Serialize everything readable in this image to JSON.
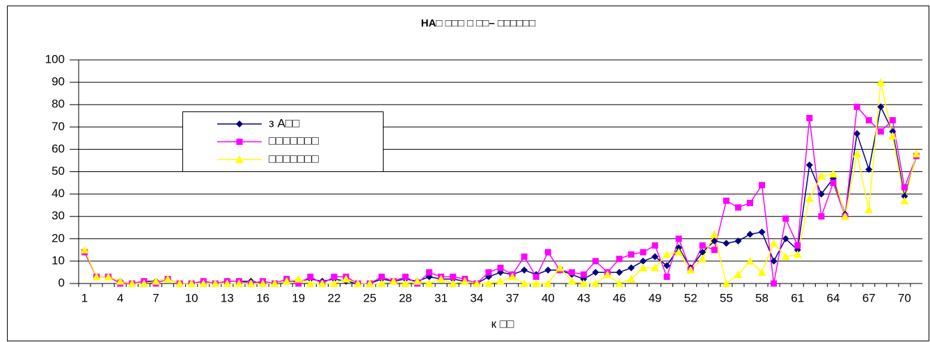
{
  "chart_data": {
    "type": "line",
    "title": "НА□ □□□ □ □□– □□□□□□",
    "x_label": "к □□",
    "categories": [
      1,
      null,
      null,
      4,
      null,
      null,
      7,
      null,
      null,
      10,
      null,
      null,
      13,
      null,
      null,
      16,
      null,
      null,
      19,
      null,
      null,
      22,
      null,
      null,
      25,
      null,
      null,
      28,
      null,
      null,
      31,
      null,
      null,
      34,
      null,
      null,
      37,
      null,
      null,
      40,
      null,
      null,
      43,
      null,
      null,
      46,
      null,
      null,
      49,
      null,
      null,
      52,
      null,
      null,
      55,
      null,
      null,
      58,
      null,
      null,
      61,
      null,
      null,
      64,
      null,
      null,
      67,
      null,
      null,
      70,
      null
    ],
    "series": [
      {
        "name": "з А□□",
        "color": "#000080",
        "marker": "diamond",
        "values": [
          14,
          3,
          3,
          1,
          0,
          1,
          1,
          2,
          0,
          0,
          1,
          0,
          1,
          1,
          1,
          0,
          0,
          1,
          1,
          2,
          1,
          2,
          1,
          0,
          0,
          2,
          1,
          2,
          1,
          3,
          2,
          2,
          1,
          0,
          3,
          5,
          4,
          6,
          4,
          6,
          6,
          4,
          2,
          5,
          5,
          5,
          7,
          10,
          12,
          8,
          16,
          7,
          14,
          19,
          18,
          19,
          22,
          23,
          10,
          20,
          15,
          53,
          40,
          47,
          31,
          67,
          51,
          79,
          68,
          39,
          57
        ]
      },
      {
        "name": "□□□□□□□",
        "color": "#ff00ff",
        "marker": "square",
        "values": [
          14,
          3,
          3,
          0,
          0,
          1,
          0,
          2,
          0,
          0,
          1,
          0,
          1,
          1,
          0,
          1,
          0,
          2,
          0,
          3,
          0,
          3,
          3,
          0,
          0,
          3,
          1,
          3,
          0,
          5,
          3,
          3,
          2,
          0,
          5,
          7,
          4,
          12,
          3,
          14,
          6,
          5,
          4,
          10,
          5,
          11,
          13,
          14,
          17,
          3,
          20,
          6,
          17,
          15,
          37,
          34,
          36,
          44,
          0,
          29,
          17,
          74,
          30,
          45,
          30,
          79,
          73,
          68,
          73,
          43,
          57
        ]
      },
      {
        "name": "□□□□□□□",
        "color": "#ffff00",
        "marker": "triangle",
        "values": [
          15,
          3,
          3,
          1,
          0,
          0,
          1,
          2,
          0,
          0,
          0,
          0,
          0,
          0,
          0,
          0,
          0,
          1,
          2,
          0,
          0,
          0,
          2,
          0,
          0,
          0,
          1,
          0,
          1,
          0,
          2,
          0,
          1,
          0,
          0,
          1,
          3,
          0,
          0,
          0,
          7,
          1,
          0,
          0,
          4,
          0,
          2,
          7,
          7,
          13,
          14,
          6,
          11,
          22,
          0,
          4,
          10,
          5,
          18,
          12,
          13,
          38,
          48,
          49,
          30,
          58,
          33,
          90,
          66,
          37,
          58
        ]
      }
    ],
    "ylim": [
      0,
      100
    ],
    "yticks": [
      0,
      10,
      20,
      30,
      40,
      50,
      60,
      70,
      80,
      90,
      100
    ],
    "grid": true
  }
}
